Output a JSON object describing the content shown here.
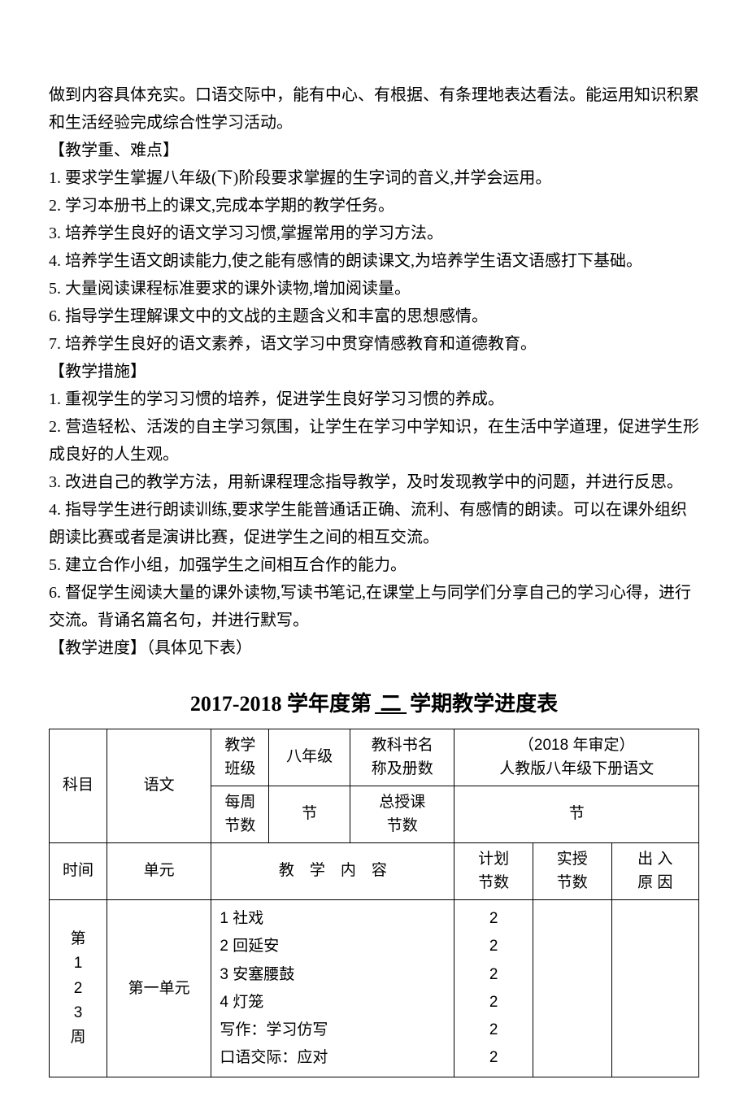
{
  "intro_para": "做到内容具体充实。口语交际中，能有中心、有根据、有条理地表达看法。能运用知识积累和生活经验完成综合性学习活动。",
  "section_a": {
    "header": "【教学重、难点】",
    "items": [
      "1. 要求学生掌握八年级(下)阶段要求掌握的生字词的音义,并学会运用。",
      "2. 学习本册书上的课文,完成本学期的教学任务。",
      "3. 培养学生良好的语文学习习惯,掌握常用的学习方法。",
      "4. 培养学生语文朗读能力,使之能有感情的朗读课文,为培养学生语文语感打下基础。",
      "5. 大量阅读课程标准要求的课外读物,增加阅读量。",
      "6. 指导学生理解课文中的文战的主题含义和丰富的思想感情。",
      "7. 培养学生良好的语文素养，语文学习中贯穿情感教育和道德教育。"
    ]
  },
  "section_b": {
    "header": "【教学措施】",
    "items": [
      "1. 重视学生的学习习惯的培养，促进学生良好学习习惯的养成。",
      "2. 营造轻松、活泼的自主学习氛围，让学生在学习中学知识，在生活中学道理，促进学生形成良好的人生观。",
      "3. 改进自己的教学方法，用新课程理念指导教学，及时发现教学中的问题，并进行反思。",
      "4. 指导学生进行朗读训练,要求学生能普通话正确、流利、有感情的朗读。可以在课外组织朗读比赛或者是演讲比赛，促进学生之间的相互交流。",
      "5. 建立合作小组，加强学生之间相互合作的能力。",
      "6. 督促学生阅读大量的课外读物,写读书笔记,在课堂上与同学们分享自己的学习心得，进行交流。背诵名篇名句，并进行默写。"
    ]
  },
  "section_c": {
    "header": "【教学进度】（具体见下表）"
  },
  "table_title": {
    "prefix": "2017-2018 学年度第",
    "semester": " 二 ",
    "suffix": "学期教学进度表"
  },
  "header_table": {
    "subject_label": "科目",
    "subject_value": "语文",
    "class_label": "教学\n班级",
    "class_value": "八年级",
    "book_label": "教科书名\n称及册数",
    "book_value_line1": "（2018 年审定）",
    "book_value_line2": "人教版八年级下册语文",
    "weekly_label": "每周\n节数",
    "weekly_value": "节",
    "total_label": "总授课\n节数",
    "total_value": "节"
  },
  "schedule_header": {
    "time": "时间",
    "unit": "单元",
    "content": "教　学　内　容",
    "plan": "计划\n节数",
    "actual": "实授\n节数",
    "diff": "出 入\n原 因"
  },
  "schedule_rows": [
    {
      "time": [
        "第",
        "1",
        "2",
        "3",
        "周"
      ],
      "unit": "第一单元",
      "contents": [
        "1 社戏",
        "2 回延安",
        "3 安塞腰鼓",
        "4 灯笼",
        "写作：学习仿写",
        "口语交际：应对"
      ],
      "plan_counts": [
        "2",
        "2",
        "2",
        "2",
        "2",
        "2"
      ]
    }
  ]
}
